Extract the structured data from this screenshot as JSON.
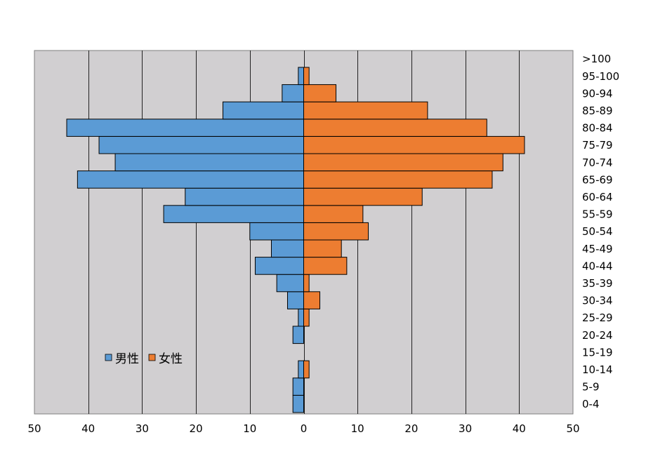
{
  "chart_data": {
    "type": "bar",
    "orientation": "horizontal-diverging",
    "categories": [
      "0-4",
      "5-9",
      "10-14",
      "15-19",
      "20-24",
      "25-29",
      "30-34",
      "35-39",
      "40-44",
      "45-49",
      "50-54",
      "55-59",
      "60-64",
      "65-69",
      "70-74",
      "75-79",
      "80-84",
      "85-89",
      "90-94",
      "95-100",
      ">100"
    ],
    "series": [
      {
        "name": "男性",
        "color": "#5b9bd5",
        "direction": "left",
        "values": [
          2,
          2,
          1,
          0,
          2,
          1,
          3,
          5,
          9,
          6,
          10,
          26,
          22,
          42,
          35,
          38,
          44,
          15,
          4,
          1,
          0
        ]
      },
      {
        "name": "女性",
        "color": "#ed7d31",
        "direction": "right",
        "values": [
          0,
          0,
          1,
          0,
          0,
          1,
          3,
          1,
          8,
          7,
          12,
          11,
          22,
          35,
          37,
          41,
          34,
          23,
          6,
          1,
          0
        ]
      }
    ],
    "x_ticks": [
      "50",
      "40",
      "30",
      "20",
      "10",
      "0",
      "10",
      "20",
      "30",
      "40",
      "50"
    ],
    "xlim": [
      -50,
      50
    ],
    "grid": true,
    "legend_position": "lower-left",
    "plot_background": "#d1cfd1"
  }
}
